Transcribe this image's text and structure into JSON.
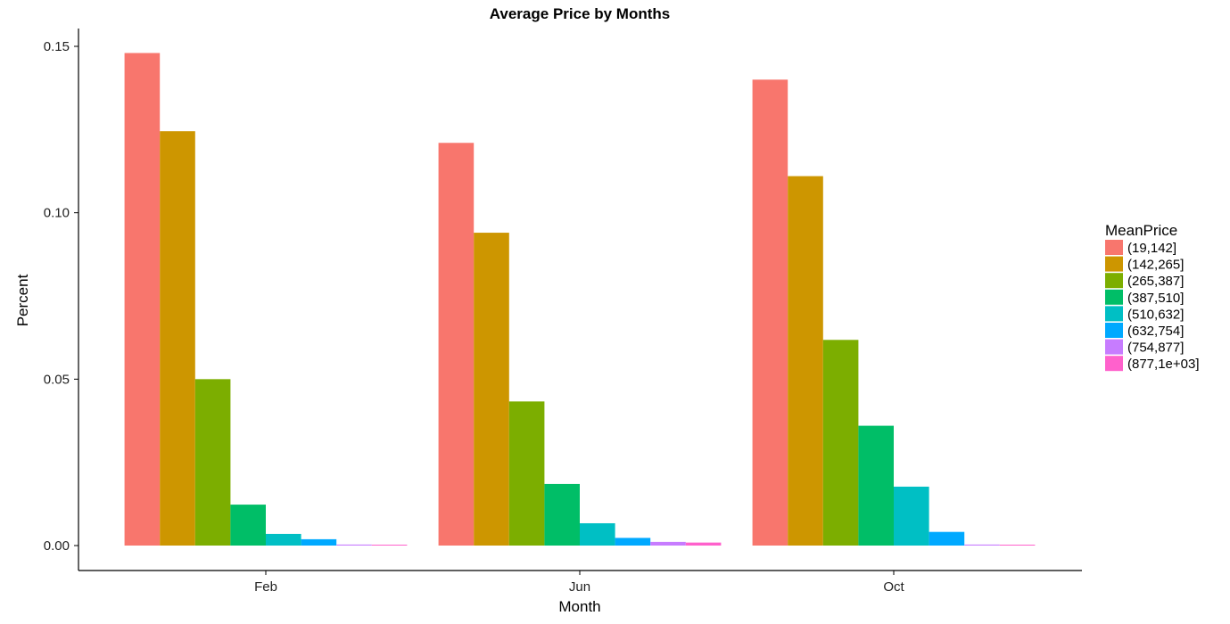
{
  "chart_data": {
    "type": "bar",
    "title": "Average Price by Months",
    "xlabel": "Month",
    "ylabel": "Percent",
    "categories": [
      "Feb",
      "Jun",
      "Oct"
    ],
    "ylim": [
      0,
      0.15
    ],
    "y_ticks": [
      "0.00",
      "0.05",
      "0.10",
      "0.15"
    ],
    "legend_title": "MeanPrice",
    "legend_position": "right",
    "grid": false,
    "series": [
      {
        "name": "(19,142]",
        "color": "#F8766D",
        "values": [
          0.148,
          0.121,
          0.14
        ]
      },
      {
        "name": "(142,265]",
        "color": "#CD9600",
        "values": [
          0.1245,
          0.094,
          0.111
        ]
      },
      {
        "name": "(265,387]",
        "color": "#7CAE00",
        "values": [
          0.05,
          0.0433,
          0.0618
        ]
      },
      {
        "name": "(387,510]",
        "color": "#00BE67",
        "values": [
          0.0123,
          0.0185,
          0.036
        ]
      },
      {
        "name": "(510,632]",
        "color": "#00BFC4",
        "values": [
          0.0035,
          0.0067,
          0.0177
        ]
      },
      {
        "name": "(632,754]",
        "color": "#00A9FF",
        "values": [
          0.0019,
          0.0023,
          0.0041
        ]
      },
      {
        "name": "(754,877]",
        "color": "#C77CFF",
        "values": [
          0.0003,
          0.0011,
          0.0003
        ]
      },
      {
        "name": "(877,1e+03]",
        "color": "#FF61CC",
        "values": [
          0.0002,
          0.0009,
          0.0002
        ]
      }
    ]
  }
}
